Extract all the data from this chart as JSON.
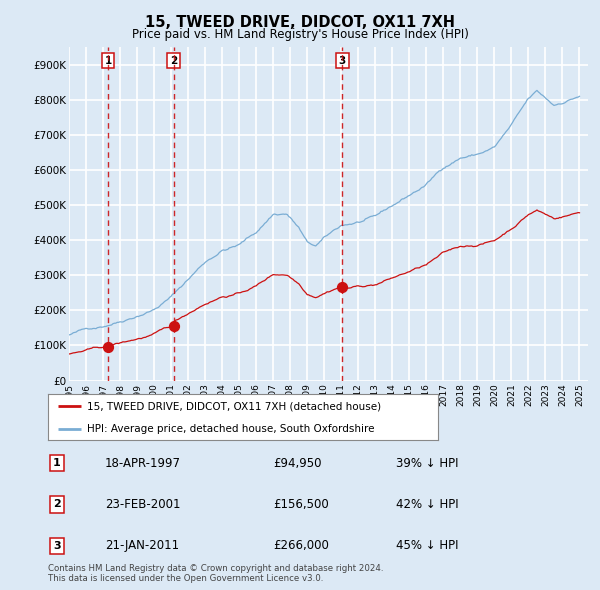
{
  "title": "15, TWEED DRIVE, DIDCOT, OX11 7XH",
  "subtitle": "Price paid vs. HM Land Registry's House Price Index (HPI)",
  "background_color": "#dce9f5",
  "plot_bg_color": "#dce9f5",
  "ylim": [
    0,
    950000
  ],
  "yticks": [
    0,
    100000,
    200000,
    300000,
    400000,
    500000,
    600000,
    700000,
    800000,
    900000
  ],
  "ytick_labels": [
    "£0",
    "£100K",
    "£200K",
    "£300K",
    "£400K",
    "£500K",
    "£600K",
    "£700K",
    "£800K",
    "£900K"
  ],
  "hpi_color": "#7aadd4",
  "price_color": "#cc1111",
  "marker_color": "#cc1111",
  "vline_color": "#cc1111",
  "grid_color": "#ffffff",
  "purchases": [
    {
      "date_num": 1997.3,
      "price": 94950,
      "label": "1"
    },
    {
      "date_num": 2001.15,
      "price": 156500,
      "label": "2"
    },
    {
      "date_num": 2011.06,
      "price": 266000,
      "label": "3"
    }
  ],
  "table_entries": [
    {
      "num": "1",
      "date": "18-APR-1997",
      "price": "£94,950",
      "note": "39% ↓ HPI"
    },
    {
      "num": "2",
      "date": "23-FEB-2001",
      "price": "£156,500",
      "note": "42% ↓ HPI"
    },
    {
      "num": "3",
      "date": "21-JAN-2011",
      "price": "£266,000",
      "note": "45% ↓ HPI"
    }
  ],
  "legend_entries": [
    "15, TWEED DRIVE, DIDCOT, OX11 7XH (detached house)",
    "HPI: Average price, detached house, South Oxfordshire"
  ],
  "footer": "Contains HM Land Registry data © Crown copyright and database right 2024.\nThis data is licensed under the Open Government Licence v3.0.",
  "xlim_start": 1995.0,
  "xlim_end": 2025.5
}
